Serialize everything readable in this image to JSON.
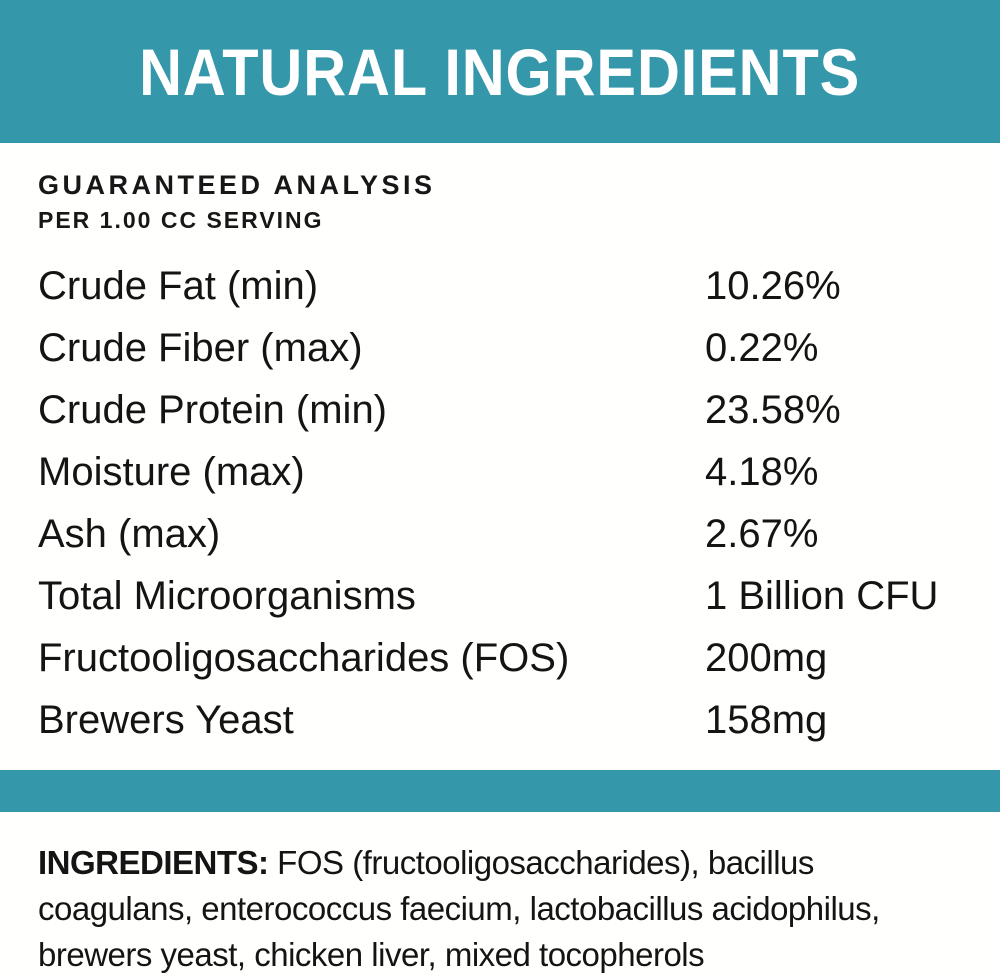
{
  "header": {
    "title": "NATURAL INGREDIENTS"
  },
  "colors": {
    "accent_teal": "#3598AA",
    "text_dark": "#141414",
    "background": "#FFFFFD"
  },
  "analysis": {
    "heading": "GUARANTEED ANALYSIS",
    "subheading": "PER 1.00 CC SERVING",
    "rows": [
      {
        "label": "Crude Fat (min)",
        "value": "10.26%"
      },
      {
        "label": "Crude Fiber (max)",
        "value": "0.22%"
      },
      {
        "label": "Crude Protein (min)",
        "value": "23.58%"
      },
      {
        "label": "Moisture (max)",
        "value": "4.18%"
      },
      {
        "label": "Ash (max)",
        "value": "2.67%"
      },
      {
        "label": "Total Microorganisms",
        "value": "1 Billion CFU"
      },
      {
        "label": "Fructooligosaccharides (FOS)",
        "value": "200mg"
      },
      {
        "label": "Brewers Yeast",
        "value": "158mg"
      }
    ]
  },
  "ingredients": {
    "label": "INGREDIENTS:",
    "line1_rest": " FOS (fructooligosaccharides), bacillus",
    "line2": "coagulans, enterococcus faecium, lactobacillus acidophilus,",
    "line3": "brewers yeast, chicken liver, mixed tocopherols"
  }
}
